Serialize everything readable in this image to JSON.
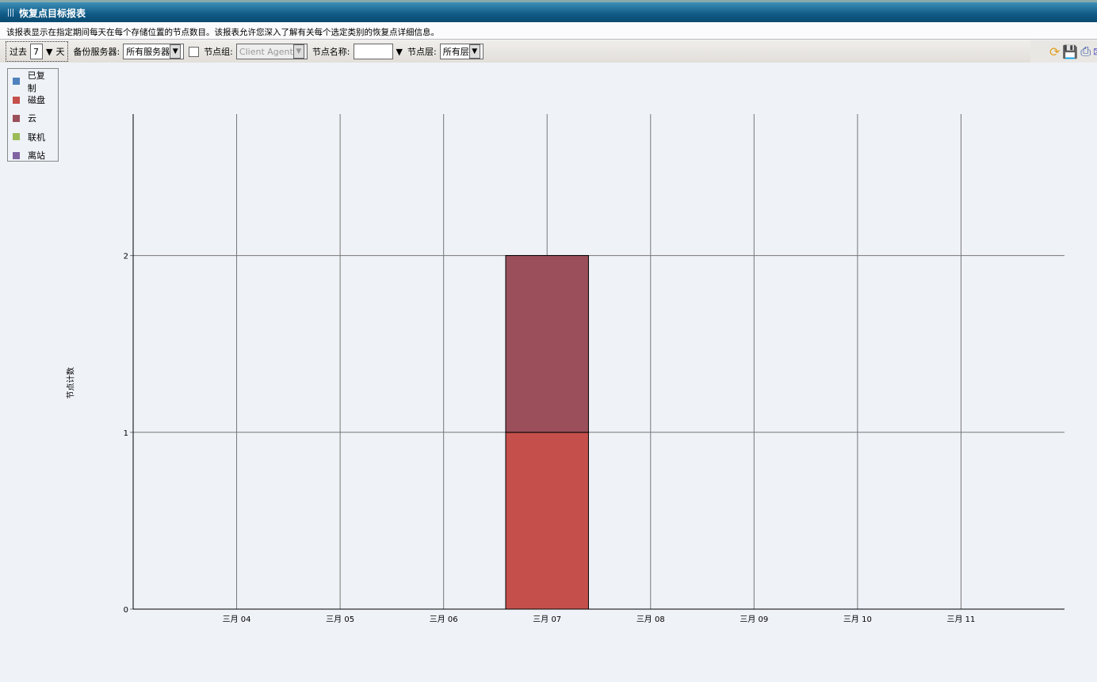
{
  "window": {
    "title": "恢复点目标报表"
  },
  "description": "该报表显示在指定期间每天在每个存储位置的节点数目。该报表允许您深入了解有关每个选定类别的恢复点详细信息。",
  "toolbar": {
    "past_label": "过去",
    "days_value": "7",
    "days_unit": "天",
    "server_label": "备份服务器:",
    "server_value": "所有服务器",
    "node_group_label": "节点组:",
    "node_group_value": "Client Agent",
    "node_name_label": "节点名称:",
    "node_name_value": "",
    "node_tier_label": "节点层:",
    "node_tier_value": "所有层"
  },
  "actions": [
    "refresh-icon",
    "save-icon",
    "print-icon",
    "email-icon"
  ],
  "chart_data": {
    "type": "bar",
    "stacked": true,
    "ylabel": "节点计数",
    "xlabel": "",
    "categories": [
      "三月 04",
      "三月 05",
      "三月 06",
      "三月 07",
      "三月 08",
      "三月 09",
      "三月 10",
      "三月 11"
    ],
    "ylim": [
      0,
      2.8
    ],
    "yticks": [
      "0",
      "1",
      "2"
    ],
    "grid": true,
    "legend": "top-left",
    "series": [
      {
        "name": "已复制",
        "color": "#4f81bd",
        "values": [
          0,
          0,
          0,
          0,
          0,
          0,
          0,
          0
        ]
      },
      {
        "name": "磁盘",
        "color": "#c5504b",
        "values": [
          0,
          0,
          0,
          1,
          0,
          0,
          0,
          0
        ]
      },
      {
        "name": "云",
        "color": "#9b4f5a",
        "values": [
          0,
          0,
          0,
          1,
          0,
          0,
          0,
          0
        ]
      },
      {
        "name": "联机",
        "color": "#9bbb59",
        "values": [
          0,
          0,
          0,
          0,
          0,
          0,
          0,
          0
        ]
      },
      {
        "name": "离站",
        "color": "#8064a2",
        "values": [
          0,
          0,
          0,
          0,
          0,
          0,
          0,
          0
        ]
      }
    ]
  }
}
